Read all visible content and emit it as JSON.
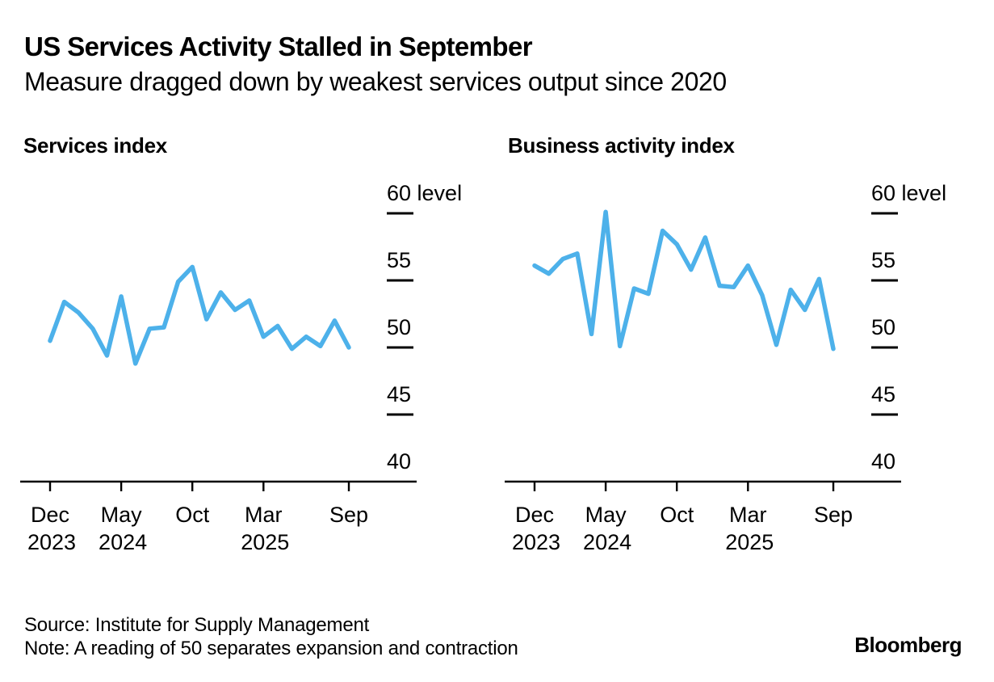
{
  "header": {
    "title": "US Services Activity Stalled in September",
    "subtitle": "Measure dragged down by weakest services output since 2020"
  },
  "footer": {
    "source": "Source: Institute for Supply Management",
    "note": "Note: A reading of 50 separates expansion and contraction",
    "brand": "Bloomberg"
  },
  "colors": {
    "line": "#4DB1EA",
    "axis": "#000000",
    "text": "#000000",
    "background": "#ffffff"
  },
  "chart_data": [
    {
      "type": "line",
      "title": "Services index",
      "unit_label": "level",
      "x": [
        "Dec 2023",
        "Jan 2024",
        "Feb 2024",
        "Mar 2024",
        "Apr 2024",
        "May 2024",
        "Jun 2024",
        "Jul 2024",
        "Aug 2024",
        "Sep 2024",
        "Oct 2024",
        "Nov 2024",
        "Dec 2024",
        "Jan 2025",
        "Feb 2025",
        "Mar 2025",
        "Apr 2025",
        "May 2025",
        "Jun 2025",
        "Jul 2025",
        "Aug 2025",
        "Sep 2025"
      ],
      "values": [
        50.5,
        53.4,
        52.6,
        51.4,
        49.4,
        53.8,
        48.8,
        51.4,
        51.5,
        54.9,
        56.0,
        52.1,
        54.1,
        52.8,
        53.5,
        50.8,
        51.6,
        49.9,
        50.8,
        50.1,
        52.0,
        50.0
      ],
      "y_ticks": [
        60,
        55,
        50,
        45,
        40
      ],
      "ylim": [
        40,
        62
      ],
      "x_ticks": [
        {
          "month": "Dec",
          "year": "2023",
          "index": 0
        },
        {
          "month": "May",
          "year": "2024",
          "index": 5
        },
        {
          "month": "Oct",
          "year": "",
          "index": 10
        },
        {
          "month": "Mar",
          "year": "2025",
          "index": 15
        },
        {
          "month": "Sep",
          "year": "",
          "index": 21
        }
      ],
      "grid": "off",
      "tick_side": "right"
    },
    {
      "type": "line",
      "title": "Business activity index",
      "unit_label": "level",
      "x": [
        "Dec 2023",
        "Jan 2024",
        "Feb 2024",
        "Mar 2024",
        "Apr 2024",
        "May 2024",
        "Jun 2024",
        "Jul 2024",
        "Aug 2024",
        "Sep 2024",
        "Oct 2024",
        "Nov 2024",
        "Dec 2024",
        "Jan 2025",
        "Feb 2025",
        "Mar 2025",
        "Apr 2025",
        "May 2025",
        "Jun 2025",
        "Jul 2025",
        "Aug 2025",
        "Sep 2025"
      ],
      "values": [
        56.1,
        55.5,
        56.6,
        57.0,
        51.0,
        60.1,
        50.1,
        54.4,
        54.0,
        58.7,
        57.7,
        55.8,
        58.2,
        54.6,
        54.5,
        56.1,
        53.9,
        50.2,
        54.3,
        52.8,
        55.1,
        49.9
      ],
      "y_ticks": [
        60,
        55,
        50,
        45,
        40
      ],
      "ylim": [
        40,
        62
      ],
      "x_ticks": [
        {
          "month": "Dec",
          "year": "2023",
          "index": 0
        },
        {
          "month": "May",
          "year": "2024",
          "index": 5
        },
        {
          "month": "Oct",
          "year": "",
          "index": 10
        },
        {
          "month": "Mar",
          "year": "2025",
          "index": 15
        },
        {
          "month": "Sep",
          "year": "",
          "index": 21
        }
      ],
      "grid": "off",
      "tick_side": "right"
    }
  ]
}
